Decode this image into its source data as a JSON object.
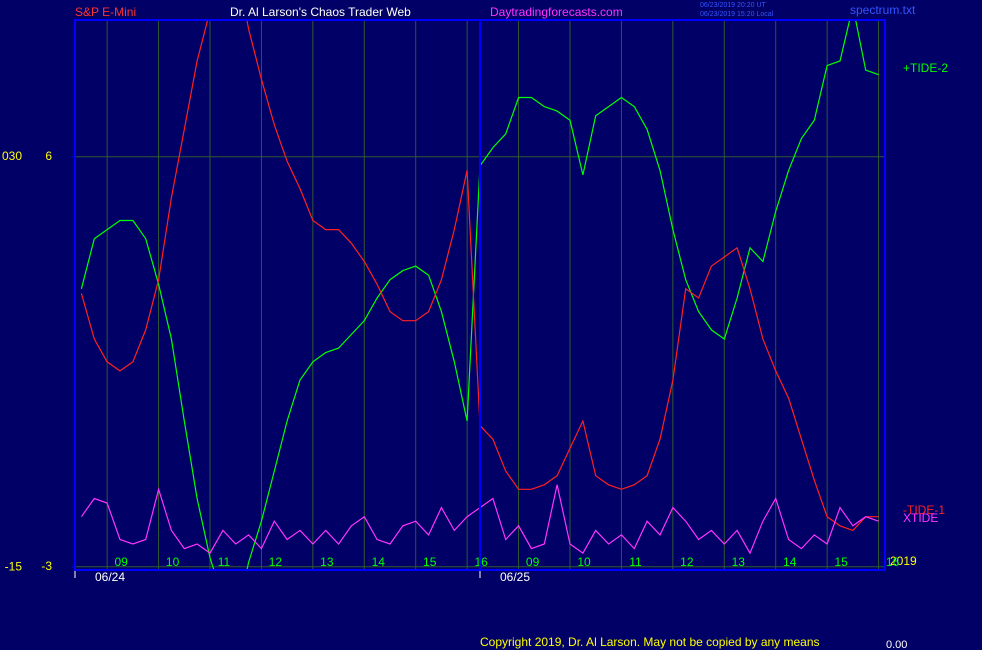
{
  "chart_data": {
    "type": "line",
    "title": "Dr. Al Larson's Chaos Trader Web",
    "instrument": "S&P E-Mini",
    "site": "Daytradingforecasts.com",
    "timestamps": [
      "06/23/2019 20:20 UT",
      "06/23/2019 15:20 Local"
    ],
    "file": "spectrum.txt",
    "year": "2019",
    "copyright": "Copyright 2019, Dr. Al Larson. May not be copied by any means",
    "footer_value": "0.00",
    "days": [
      "06/24",
      "06/25"
    ],
    "categories": [
      null,
      null,
      "09",
      null,
      null,
      null,
      "10",
      null,
      null,
      null,
      "11",
      null,
      null,
      null,
      "12",
      null,
      null,
      null,
      "13",
      null,
      null,
      null,
      "14",
      null,
      null,
      null,
      "15",
      null,
      null,
      null,
      "16",
      null,
      null,
      null,
      "09",
      null,
      null,
      null,
      "10",
      null,
      null,
      null,
      "11",
      null,
      null,
      null,
      "12",
      null,
      null,
      null,
      "13",
      null,
      null,
      null,
      "14",
      null,
      null,
      null,
      "15",
      null,
      null,
      null,
      "16"
    ],
    "ylim": [
      -3.07,
      9.0
    ],
    "yticks": [
      -3,
      6
    ],
    "y2lim": [
      -15.3,
      45.0
    ],
    "y2ticks": [
      -15,
      {
        "value": 30,
        "label": "030"
      }
    ],
    "grid": true,
    "series": [
      {
        "name": "+TIDE-2",
        "color": "#00ff00",
        "values": [
          3.1,
          4.2,
          4.4,
          4.6,
          4.6,
          4.2,
          3.2,
          2.0,
          0.2,
          -1.5,
          -2.8,
          -3.7,
          -4.2,
          -2.9,
          -2.0,
          -0.9,
          0.2,
          1.1,
          1.5,
          1.7,
          1.8,
          2.1,
          2.4,
          2.9,
          3.3,
          3.5,
          3.6,
          3.4,
          2.6,
          1.5,
          0.2,
          5.8,
          6.2,
          6.5,
          7.3,
          7.3,
          7.1,
          7.0,
          6.8,
          5.6,
          6.9,
          7.1,
          7.3,
          7.1,
          6.6,
          5.7,
          4.4,
          3.3,
          2.6,
          2.2,
          2.0,
          2.9,
          4.0,
          3.7,
          4.8,
          5.7,
          6.4,
          6.8,
          8.0,
          8.1,
          9.3,
          7.9,
          7.8
        ]
      },
      {
        "name": "-TIDE-1",
        "color": "#ff2020",
        "values": [
          3.0,
          2.0,
          1.5,
          1.3,
          1.5,
          2.2,
          3.3,
          5.1,
          6.6,
          8.1,
          9.2,
          10.1,
          10.3,
          8.8,
          7.7,
          6.7,
          5.9,
          5.3,
          4.6,
          4.4,
          4.4,
          4.1,
          3.7,
          3.2,
          2.6,
          2.4,
          2.4,
          2.6,
          3.3,
          4.4,
          5.7,
          0.1,
          -0.2,
          -0.9,
          -1.3,
          -1.3,
          -1.2,
          -1.0,
          -0.4,
          0.2,
          -1.0,
          -1.2,
          -1.3,
          -1.2,
          -1.0,
          -0.2,
          1.1,
          3.1,
          2.9,
          3.6,
          3.8,
          4.0,
          3.1,
          2.0,
          1.3,
          0.7,
          -0.2,
          -1.1,
          -1.9,
          -2.1,
          -2.2,
          -1.9,
          -1.9
        ]
      },
      {
        "name": "XTIDE",
        "color": "#ff33ff",
        "values": [
          -1.9,
          -1.5,
          -1.6,
          -2.4,
          -2.5,
          -2.4,
          -1.3,
          -2.2,
          -2.6,
          -2.5,
          -2.7,
          -2.2,
          -2.5,
          -2.3,
          -2.6,
          -2.0,
          -2.4,
          -2.2,
          -2.5,
          -2.2,
          -2.5,
          -2.1,
          -1.9,
          -2.4,
          -2.5,
          -2.1,
          -2.0,
          -2.3,
          -1.7,
          -2.2,
          -1.9,
          -1.7,
          -1.5,
          -2.4,
          -2.1,
          -2.6,
          -2.5,
          -1.2,
          -2.5,
          -2.7,
          -2.2,
          -2.5,
          -2.3,
          -2.6,
          -2.0,
          -2.3,
          -1.7,
          -2.0,
          -2.4,
          -2.2,
          -2.5,
          -2.2,
          -2.7,
          -2.0,
          -1.5,
          -2.4,
          -2.6,
          -2.3,
          -2.5,
          -1.7,
          -2.1,
          -1.9,
          -2.0
        ]
      }
    ]
  }
}
